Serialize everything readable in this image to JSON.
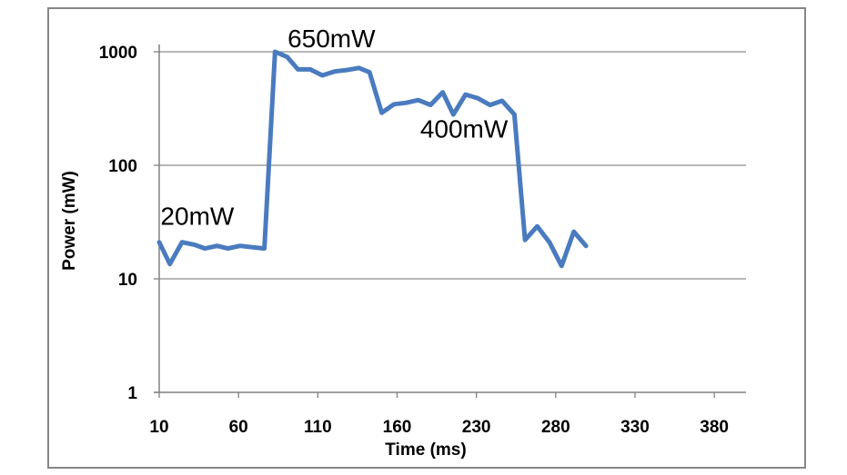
{
  "chart_data": {
    "type": "line",
    "xlabel": "Time (ms)",
    "ylabel": "Power (mW)",
    "yscale": "log",
    "ylim": [
      1,
      1000
    ],
    "xlim": [
      10,
      395
    ],
    "x_ticks": [
      10,
      60,
      110,
      160,
      230,
      280,
      330,
      380
    ],
    "y_ticks": [
      1,
      10,
      100,
      1000
    ],
    "grid": "horizontal",
    "line_color": "#4a7bbf",
    "series": [
      {
        "points": [
          [
            10,
            21
          ],
          [
            17,
            13.5
          ],
          [
            25,
            21
          ],
          [
            33,
            20
          ],
          [
            40,
            18.5
          ],
          [
            48,
            19.5
          ],
          [
            55,
            18.5
          ],
          [
            63,
            19.5
          ],
          [
            71,
            19
          ],
          [
            79,
            18.5
          ],
          [
            86,
            1000
          ],
          [
            94,
            900
          ],
          [
            101,
            700
          ],
          [
            109,
            700
          ],
          [
            117,
            620
          ],
          [
            125,
            670
          ],
          [
            133,
            690
          ],
          [
            141,
            720
          ],
          [
            148,
            660
          ],
          [
            156,
            290
          ],
          [
            164,
            345
          ],
          [
            172,
            355
          ],
          [
            180,
            375
          ],
          [
            188,
            340
          ],
          [
            196,
            440
          ],
          [
            203,
            280
          ],
          [
            211,
            420
          ],
          [
            219,
            390
          ],
          [
            227,
            340
          ],
          [
            235,
            370
          ],
          [
            243,
            280
          ],
          [
            250,
            22
          ],
          [
            258,
            29
          ],
          [
            266,
            21
          ],
          [
            274,
            13
          ],
          [
            282,
            26
          ],
          [
            290,
            19.5
          ]
        ]
      }
    ],
    "annotations": [
      {
        "text": "20mW",
        "x": 35,
        "y": 30
      },
      {
        "text": "650mW",
        "x": 123,
        "y": 1100
      },
      {
        "text": "400mW",
        "x": 210,
        "y": 175
      }
    ]
  }
}
